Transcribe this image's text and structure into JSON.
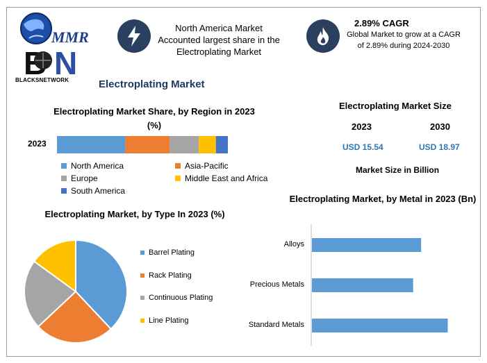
{
  "logo": {
    "text": "BLACKSNETWORK",
    "mark": "MMR BN"
  },
  "header": {
    "highlight_text": "North America Market Accounted largest share in the Electroplating Market",
    "cagr_title": "2.89% CAGR",
    "cagr_desc": "Global Market to grow at a CAGR of 2.89% during 2024-2030",
    "lightning_icon": "lightning-icon",
    "flame_icon": "flame-icon"
  },
  "main_title": "Electroplating Market",
  "market_size": {
    "title": "Electroplating Market Size",
    "years": [
      "2023",
      "2030"
    ],
    "values": [
      "USD 15.54",
      "USD 18.97"
    ],
    "note": "Market Size in Billion"
  },
  "colors": {
    "blue": "#5b9bd5",
    "orange": "#ed7d31",
    "gray": "#a5a5a5",
    "yellow": "#ffc000",
    "navy": "#4472c4",
    "dark": "#2b3f5e"
  },
  "chart_data": [
    {
      "type": "bar",
      "orientation": "horizontal-stacked",
      "title": "Electroplating Market Share, by Region in 2023 (%)",
      "categories": [
        "2023"
      ],
      "series": [
        {
          "name": "North America",
          "values": [
            40
          ]
        },
        {
          "name": "Asia-Pacific",
          "values": [
            26
          ]
        },
        {
          "name": "Europe",
          "values": [
            17
          ]
        },
        {
          "name": "Middle East and Africa",
          "values": [
            10
          ]
        },
        {
          "name": "South America",
          "values": [
            7
          ]
        }
      ],
      "legend": "bottom"
    },
    {
      "type": "pie",
      "title": "Electroplating Market, by Type In 2023 (%)",
      "categories": [
        "Barrel Plating",
        "Rack Plating",
        "Continuous Plating",
        "Line Plating"
      ],
      "values": [
        38,
        25,
        22,
        15
      ],
      "legend": "right"
    },
    {
      "type": "bar",
      "orientation": "horizontal",
      "title": "Electroplating Market, by Metal in 2023 (Bn)",
      "categories": [
        "Alloys",
        "Precious Metals",
        "Standard Metals"
      ],
      "values": [
        4.1,
        3.8,
        5.1
      ],
      "xlim": [
        0,
        6
      ]
    }
  ]
}
